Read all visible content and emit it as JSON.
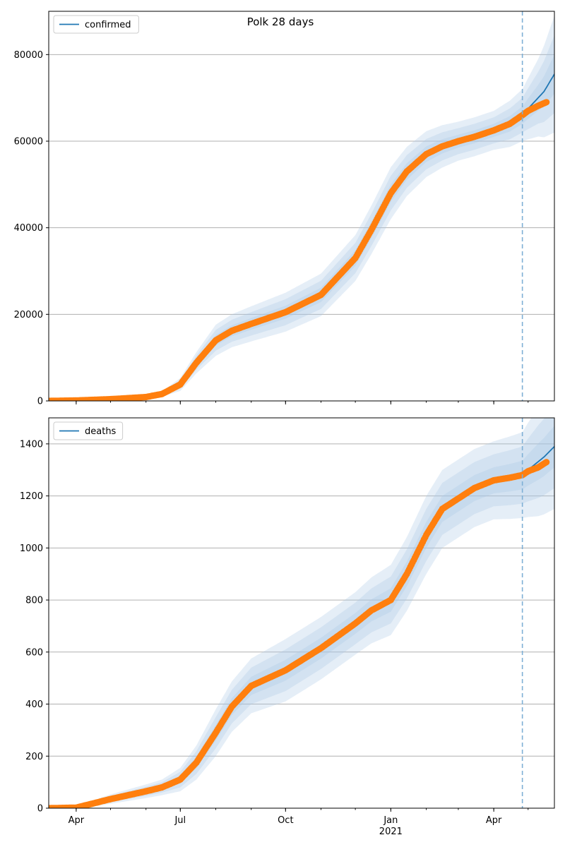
{
  "figure": {
    "title": "Polk 28 days"
  },
  "colors": {
    "forecast_line": "#1f77b4",
    "observed_points": "#ff7f0e",
    "band": "#aac8e4",
    "grid": "#b0b0b0",
    "cutoff_line": "#7fb0d6"
  },
  "chart_data": [
    {
      "type": "line",
      "legend_label": "confirmed",
      "legend_position": "upper-left",
      "grid": "horizontal",
      "x_range": [
        "2020-03-08",
        "2021-05-24"
      ],
      "ylim": [
        0,
        90000
      ],
      "yticks": [
        0,
        20000,
        40000,
        60000,
        80000
      ],
      "ytick_labels": [
        "0",
        "20000",
        "40000",
        "60000",
        "80000"
      ],
      "cutoff_date": "2021-04-26",
      "forecast": {
        "dates": [
          "2020-03-08",
          "2020-04-01",
          "2020-05-01",
          "2020-06-01",
          "2020-06-15",
          "2020-07-01",
          "2020-07-15",
          "2020-08-01",
          "2020-08-15",
          "2020-09-01",
          "2020-10-01",
          "2020-11-01",
          "2020-12-01",
          "2020-12-15",
          "2021-01-01",
          "2021-01-15",
          "2021-02-01",
          "2021-02-15",
          "2021-03-01",
          "2021-03-15",
          "2021-04-01",
          "2021-04-15",
          "2021-04-26",
          "2021-05-01",
          "2021-05-15",
          "2021-05-24"
        ],
        "values": [
          0,
          100,
          400,
          900,
          1600,
          3800,
          8800,
          14000,
          16200,
          17800,
          20500,
          24500,
          33000,
          39500,
          48000,
          53000,
          57000,
          58800,
          60000,
          61000,
          62500,
          64000,
          66000,
          67500,
          71500,
          75500
        ]
      },
      "band_halfwidths": {
        "dates": [
          "2020-03-08",
          "2020-06-15",
          "2020-07-01",
          "2020-08-01",
          "2020-10-01",
          "2020-12-01",
          "2021-01-01",
          "2021-02-01",
          "2021-03-01",
          "2021-04-01",
          "2021-04-26",
          "2021-05-10",
          "2021-05-24"
        ],
        "widths": [
          [
            0,
            200,
            500,
            1200,
            1500,
            1800,
            2000,
            1800,
            1500,
            1500,
            2000,
            3000,
            4500
          ],
          [
            0,
            400,
            1000,
            2400,
            3000,
            3500,
            4000,
            3500,
            3000,
            3000,
            4000,
            6000,
            9000
          ],
          [
            0,
            600,
            1500,
            3600,
            4500,
            5300,
            6000,
            5300,
            4500,
            4500,
            6000,
            9000,
            13500
          ]
        ]
      },
      "observed": {
        "dates": [
          "2020-03-08",
          "2020-04-01",
          "2020-05-01",
          "2020-06-01",
          "2020-06-15",
          "2020-07-01",
          "2020-07-15",
          "2020-08-01",
          "2020-08-15",
          "2020-09-01",
          "2020-10-01",
          "2020-11-01",
          "2020-12-01",
          "2020-12-15",
          "2021-01-01",
          "2021-01-15",
          "2021-02-01",
          "2021-02-15",
          "2021-03-01",
          "2021-03-15",
          "2021-04-01",
          "2021-04-15",
          "2021-04-26",
          "2021-05-01",
          "2021-05-10",
          "2021-05-17"
        ],
        "values": [
          0,
          100,
          400,
          900,
          1600,
          3800,
          8800,
          14000,
          16200,
          17800,
          20500,
          24500,
          33000,
          39500,
          48000,
          53000,
          57000,
          58800,
          60000,
          61000,
          62500,
          64000,
          66000,
          67000,
          68200,
          69000
        ]
      }
    },
    {
      "type": "line",
      "legend_label": "deaths",
      "legend_position": "upper-left",
      "grid": "horizontal",
      "x_range": [
        "2020-03-08",
        "2021-05-24"
      ],
      "ylim": [
        0,
        1500
      ],
      "yticks": [
        0,
        200,
        400,
        600,
        800,
        1000,
        1200,
        1400
      ],
      "ytick_labels": [
        "0",
        "200",
        "400",
        "600",
        "800",
        "1000",
        "1200",
        "1400"
      ],
      "cutoff_date": "2021-04-26",
      "xticks": [
        "2020-04-01",
        "2020-07-01",
        "2020-10-01",
        "2021-01-01",
        "2021-04-01"
      ],
      "xtick_labels": [
        "Apr",
        "Jul",
        "Oct",
        "Jan",
        "Apr"
      ],
      "xtick_year_label": "2021",
      "forecast": {
        "dates": [
          "2020-03-08",
          "2020-04-01",
          "2020-05-01",
          "2020-06-01",
          "2020-06-15",
          "2020-07-01",
          "2020-07-15",
          "2020-08-01",
          "2020-08-15",
          "2020-09-01",
          "2020-10-01",
          "2020-11-01",
          "2020-12-01",
          "2020-12-15",
          "2021-01-01",
          "2021-01-15",
          "2021-02-01",
          "2021-02-15",
          "2021-03-01",
          "2021-03-15",
          "2021-04-01",
          "2021-04-15",
          "2021-04-26",
          "2021-05-01",
          "2021-05-15",
          "2021-05-24"
        ],
        "values": [
          0,
          2,
          35,
          65,
          80,
          110,
          175,
          290,
          390,
          470,
          530,
          615,
          710,
          760,
          800,
          900,
          1050,
          1150,
          1190,
          1230,
          1260,
          1270,
          1280,
          1300,
          1350,
          1390
        ]
      },
      "band_halfwidths": {
        "dates": [
          "2020-03-08",
          "2020-04-01",
          "2020-05-01",
          "2020-06-15",
          "2020-07-01",
          "2020-08-01",
          "2020-10-01",
          "2020-12-01",
          "2021-01-01",
          "2021-02-01",
          "2021-03-01",
          "2021-04-01",
          "2021-04-26",
          "2021-05-10",
          "2021-05-24"
        ],
        "widths": [
          [
            0,
            1,
            6,
            10,
            15,
            30,
            40,
            40,
            45,
            50,
            50,
            50,
            55,
            70,
            80
          ],
          [
            0,
            3,
            12,
            20,
            30,
            60,
            80,
            80,
            90,
            100,
            100,
            100,
            110,
            140,
            160
          ],
          [
            0,
            5,
            18,
            30,
            45,
            90,
            120,
            120,
            135,
            150,
            150,
            150,
            165,
            210,
            240
          ]
        ]
      },
      "observed": {
        "dates": [
          "2020-03-08",
          "2020-04-01",
          "2020-05-01",
          "2020-06-01",
          "2020-06-15",
          "2020-07-01",
          "2020-07-15",
          "2020-08-01",
          "2020-08-15",
          "2020-09-01",
          "2020-10-01",
          "2020-11-01",
          "2020-12-01",
          "2020-12-15",
          "2021-01-01",
          "2021-01-15",
          "2021-02-01",
          "2021-02-15",
          "2021-03-01",
          "2021-03-15",
          "2021-04-01",
          "2021-04-15",
          "2021-04-26",
          "2021-05-01",
          "2021-05-10",
          "2021-05-17"
        ],
        "values": [
          0,
          2,
          35,
          65,
          80,
          110,
          175,
          290,
          390,
          470,
          530,
          615,
          710,
          760,
          800,
          900,
          1050,
          1150,
          1190,
          1230,
          1260,
          1270,
          1280,
          1295,
          1310,
          1330
        ]
      }
    }
  ]
}
